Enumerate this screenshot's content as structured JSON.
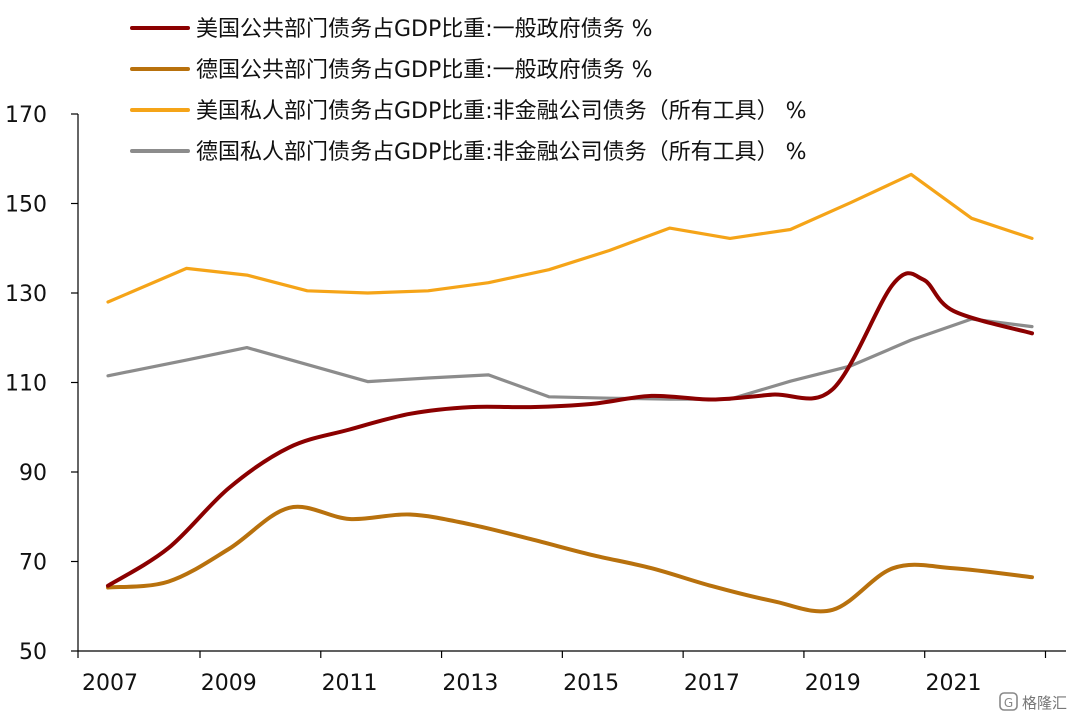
{
  "chart_data": {
    "type": "line",
    "title": "",
    "xlabel": "",
    "ylabel": "",
    "xlim": [
      2007,
      2022.4
    ],
    "ylim": [
      50,
      170
    ],
    "yticks": [
      50,
      70,
      90,
      110,
      130,
      150,
      170
    ],
    "xticks": [
      2007,
      2009,
      2011,
      2013,
      2015,
      2017,
      2019,
      2021
    ],
    "grid": false,
    "legend_position": "top-left",
    "series": [
      {
        "name": "美国公共部门债务占GDP比重:一般政府债务 %",
        "color": "#8b0000",
        "x": [
          2007,
          2008,
          2009,
          2010,
          2011,
          2012,
          2013,
          2014,
          2015,
          2016,
          2017,
          2018,
          2019,
          2020,
          2020.5,
          2021,
          2022.3
        ],
        "y": [
          64.6,
          73,
          86.4,
          95.5,
          99.5,
          103,
          104.5,
          104.5,
          105.2,
          107,
          106.2,
          107.3,
          108.5,
          132,
          133,
          126,
          121
        ]
      },
      {
        "name": "德国公共部门债务占GDP比重:一般政府债务 %",
        "color": "#b8710d",
        "x": [
          2007,
          2008,
          2009,
          2010,
          2011,
          2012,
          2013,
          2014,
          2015,
          2016,
          2017,
          2018,
          2019,
          2020,
          2021,
          2022.3
        ],
        "y": [
          64.2,
          65.5,
          72.8,
          82,
          79.5,
          80.5,
          78.3,
          75,
          71.5,
          68.5,
          64.5,
          61.2,
          59.2,
          68.5,
          68.5,
          66.5
        ]
      },
      {
        "name": "美国私人部门债务占GDP比重:非金融公司债务（所有工具） %",
        "color": "#f5a418",
        "x": [
          2007,
          2008.3,
          2009.3,
          2010.3,
          2011.3,
          2012.3,
          2013.3,
          2014.3,
          2015.3,
          2016.3,
          2017.3,
          2018.3,
          2019.3,
          2020.3,
          2021.3,
          2022.3
        ],
        "y": [
          128,
          135.5,
          134,
          130.5,
          130,
          130.5,
          132.3,
          135.2,
          139.5,
          144.5,
          142.2,
          144.2,
          150.2,
          156.5,
          146.7,
          142.2
        ]
      },
      {
        "name": "德国私人部门债务占GDP比重:非金融公司债务（所有工具） %",
        "color": "#8c8c8c",
        "x": [
          2007,
          2008.3,
          2009.3,
          2010.3,
          2011.3,
          2012.3,
          2013.3,
          2014.3,
          2015.3,
          2016.3,
          2017.3,
          2018.3,
          2019.3,
          2020.3,
          2021.3,
          2022.3
        ],
        "y": [
          111.5,
          115,
          117.8,
          114,
          110.2,
          111,
          111.7,
          106.8,
          106.5,
          106.3,
          106.3,
          110.3,
          113.7,
          119.5,
          124.2,
          122.5
        ]
      }
    ]
  },
  "watermark": {
    "text": "格隆汇"
  }
}
